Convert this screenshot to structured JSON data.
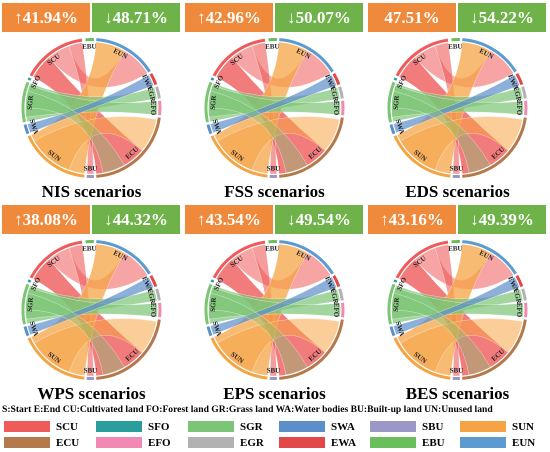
{
  "panels": [
    {
      "title": "NIS scenarios",
      "increase": "↑41.94%",
      "decrease": "↓48.71%"
    },
    {
      "title": "FSS scenarios",
      "increase": "↑42.96%",
      "decrease": "↓50.07%"
    },
    {
      "title": "EDS scenarios",
      "increase": "47.51%",
      "decrease": "↓54.22%"
    },
    {
      "title": "WPS scenarios",
      "increase": "↑38.08%",
      "decrease": "↓44.32%"
    },
    {
      "title": "EPS scenarios",
      "increase": "↑43.54%",
      "decrease": "↓49.54%"
    },
    {
      "title": "BES scenarios",
      "increase": "↑43.16%",
      "decrease": "↓49.39%"
    }
  ],
  "chord_labels": {
    "scu": "SCU",
    "ebu": "EBU",
    "eun": "EUN",
    "ewa": "EWA",
    "egr": "EGR",
    "efo": "EFO",
    "ecu": "ECU",
    "sbu": "SBU",
    "sun": "SUN",
    "swa": "SWA",
    "sgr": "SGR",
    "sfo": "SFO"
  },
  "definitions": "S:Start  E:End  CU:Cultivated land  FO:Forest land  GR:Grass land  WA:Water bodies  BU:Built-up land  UN:Unused land",
  "legend": [
    {
      "label": "SCU",
      "color": "#ef5a5a"
    },
    {
      "label": "SFO",
      "color": "#2a9d9d"
    },
    {
      "label": "SGR",
      "color": "#7cc576"
    },
    {
      "label": "SWA",
      "color": "#5b8fc9"
    },
    {
      "label": "SBU",
      "color": "#9a98c6"
    },
    {
      "label": "SUN",
      "color": "#f5a445"
    },
    {
      "label": "ECU",
      "color": "#b47a4c"
    },
    {
      "label": "EFO",
      "color": "#f08ab4"
    },
    {
      "label": "EGR",
      "color": "#b2b2b2"
    },
    {
      "label": "EWA",
      "color": "#e24848"
    },
    {
      "label": "EBU",
      "color": "#6abf5c"
    },
    {
      "label": "EUN",
      "color": "#5b9bd0"
    }
  ],
  "colors": {
    "increase_header": "#ef8a3c",
    "decrease_header": "#6fb24a"
  }
}
